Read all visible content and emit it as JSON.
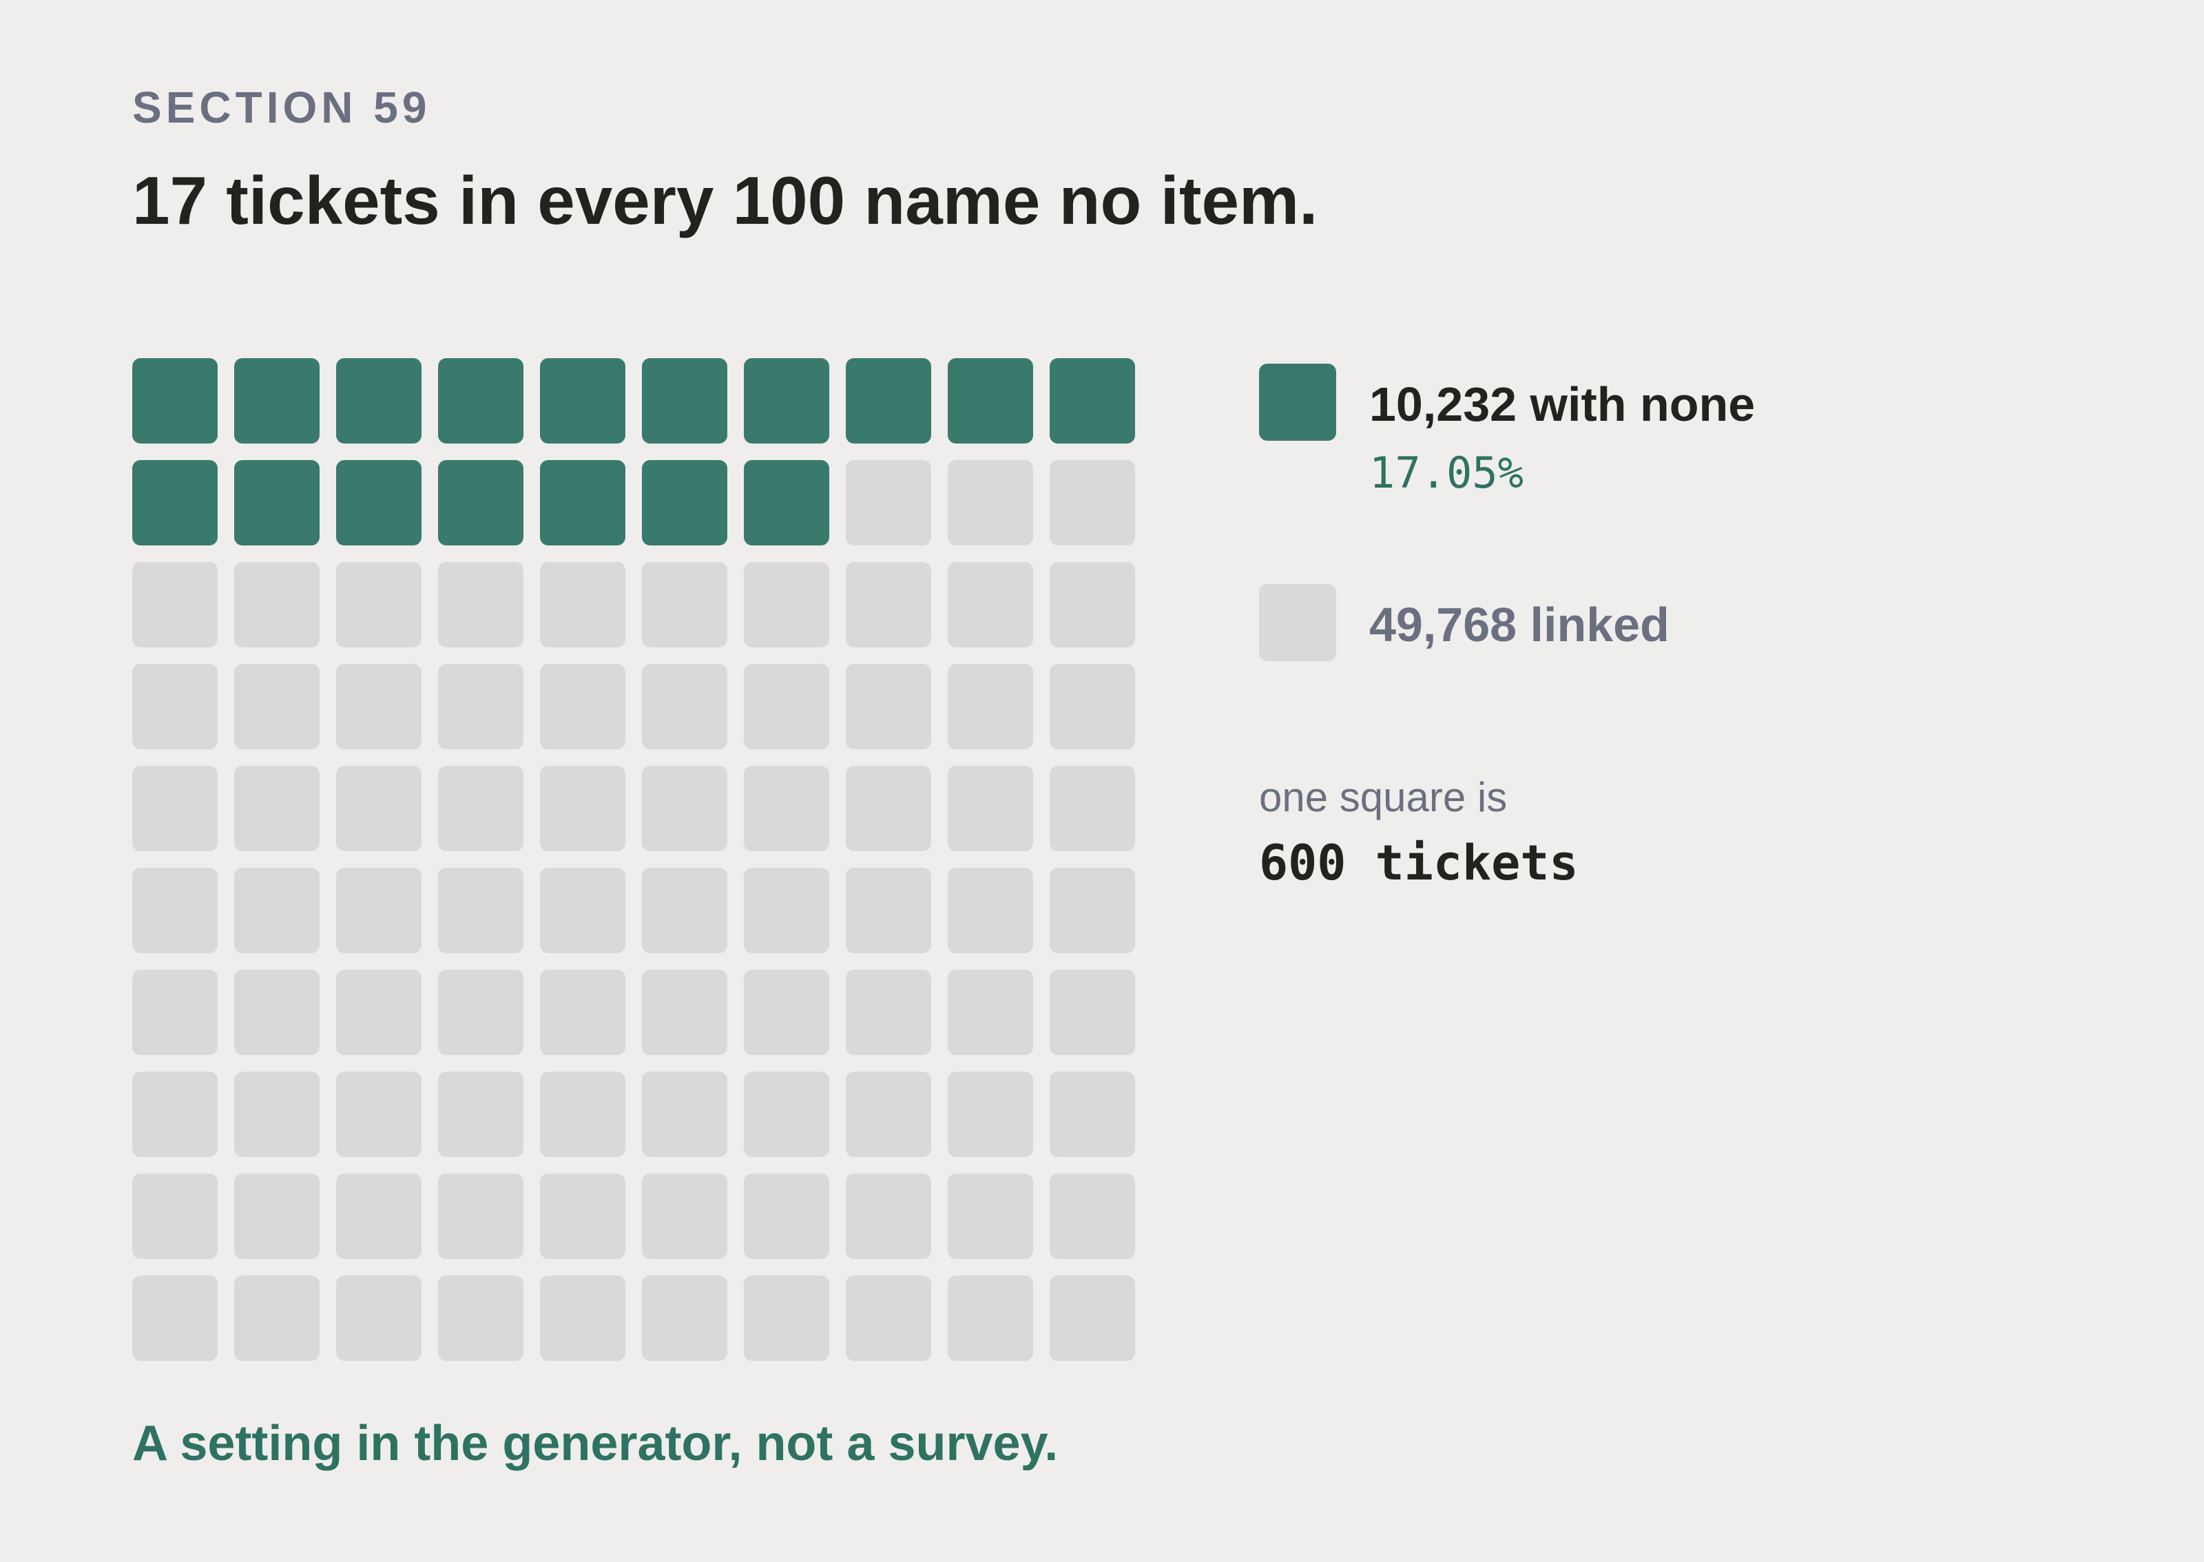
{
  "header": {
    "eyebrow": "SECTION 59",
    "title": "17 tickets in every 100 name no item."
  },
  "legend": {
    "highlight": {
      "label": "10,232 with none",
      "percent": "17.05%"
    },
    "rest": {
      "label": "49,768 linked"
    },
    "unit_caption": "one square is",
    "unit_value": "600 tickets"
  },
  "footnote": "A setting in the generator, not a survey.",
  "colors": {
    "highlight": "#3a7a6d",
    "rest": "#dad9d7",
    "background": "#f0eeec",
    "accent_text": "#2e7263",
    "muted_text": "#6b7080",
    "dark_text": "#24221f"
  },
  "chart_data": {
    "type": "waffle",
    "rows": 10,
    "columns": 10,
    "total_squares": 100,
    "highlighted_squares": 17,
    "series": [
      {
        "name": "with none",
        "count": 10232,
        "squares": 17,
        "percent": 17.05
      },
      {
        "name": "linked",
        "count": 49768,
        "squares": 83
      }
    ],
    "tickets_per_square": 600
  }
}
